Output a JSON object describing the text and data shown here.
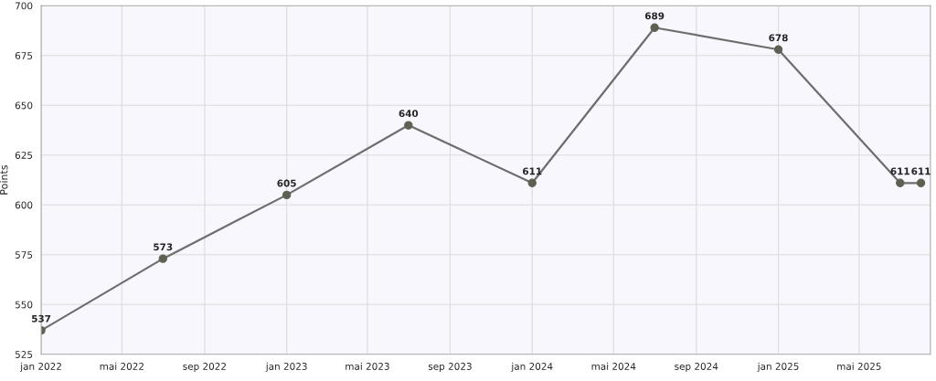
{
  "chart_data": {
    "type": "line",
    "ylabel": "Points",
    "x": [
      "2022-01-01",
      "2022-07-01",
      "2023-01-01",
      "2023-07-01",
      "2024-01-01",
      "2024-07-01",
      "2025-01-01",
      "2025-07-01",
      "2025-08-01"
    ],
    "series": [
      {
        "color": "#6e6e6e",
        "values": [
          537,
          573,
          605,
          640,
          611,
          689,
          678,
          611,
          611
        ]
      }
    ],
    "xlim": [
      "2022-01-01",
      "2025-08-15"
    ],
    "xticks": [
      {
        "value": "2022-01-01",
        "label": "jan 2022"
      },
      {
        "value": "2022-05-01",
        "label": "mai 2022"
      },
      {
        "value": "2022-09-01",
        "label": "sep 2022"
      },
      {
        "value": "2023-01-01",
        "label": "jan 2023"
      },
      {
        "value": "2023-05-01",
        "label": "mai 2023"
      },
      {
        "value": "2023-09-01",
        "label": "sep 2023"
      },
      {
        "value": "2024-01-01",
        "label": "jan 2024"
      },
      {
        "value": "2024-05-01",
        "label": "mai 2024"
      },
      {
        "value": "2024-09-01",
        "label": "sep 2024"
      },
      {
        "value": "2025-01-01",
        "label": "jan 2025"
      },
      {
        "value": "2025-05-01",
        "label": "mai 2025"
      }
    ],
    "ylim": [
      525,
      700
    ],
    "yticks": [
      525,
      550,
      575,
      600,
      625,
      650,
      675,
      700
    ],
    "grid": true,
    "marker": "circle",
    "line_style": "solid",
    "data_labels": true
  }
}
